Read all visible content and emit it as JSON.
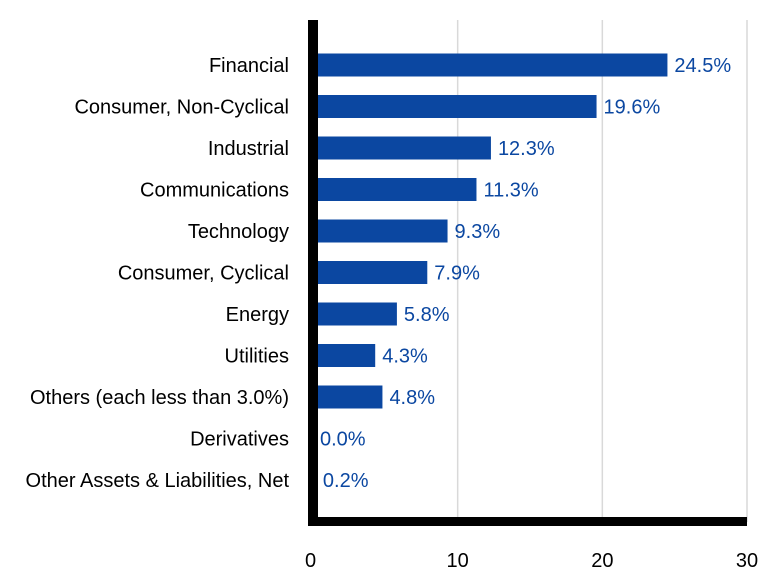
{
  "chart_data": {
    "type": "bar",
    "orientation": "horizontal",
    "title": "",
    "xlabel": "",
    "ylabel": "",
    "categories": [
      "Financial",
      "Consumer, Non-Cyclical",
      "Industrial",
      "Communications",
      "Technology",
      "Consumer, Cyclical",
      "Energy",
      "Utilities",
      "Others (each less than 3.0%)",
      "Derivatives",
      "Other Assets & Liabilities, Net"
    ],
    "values": [
      24.5,
      19.6,
      12.3,
      11.3,
      9.3,
      7.9,
      5.8,
      4.3,
      4.8,
      0.0,
      0.2
    ],
    "value_labels": [
      "24.5%",
      "19.6%",
      "12.3%",
      "11.3%",
      "9.3%",
      "7.9%",
      "5.8%",
      "4.3%",
      "4.8%",
      "0.0%",
      "0.2%"
    ],
    "xlim": [
      0,
      30
    ],
    "xticks": [
      0,
      10,
      20,
      30
    ],
    "grid": true,
    "legend": "none",
    "colors": {
      "bar": "#0b47a1",
      "value_label": "#0b47a1",
      "axis": "#000000",
      "grid": "#d9d9d9"
    }
  }
}
